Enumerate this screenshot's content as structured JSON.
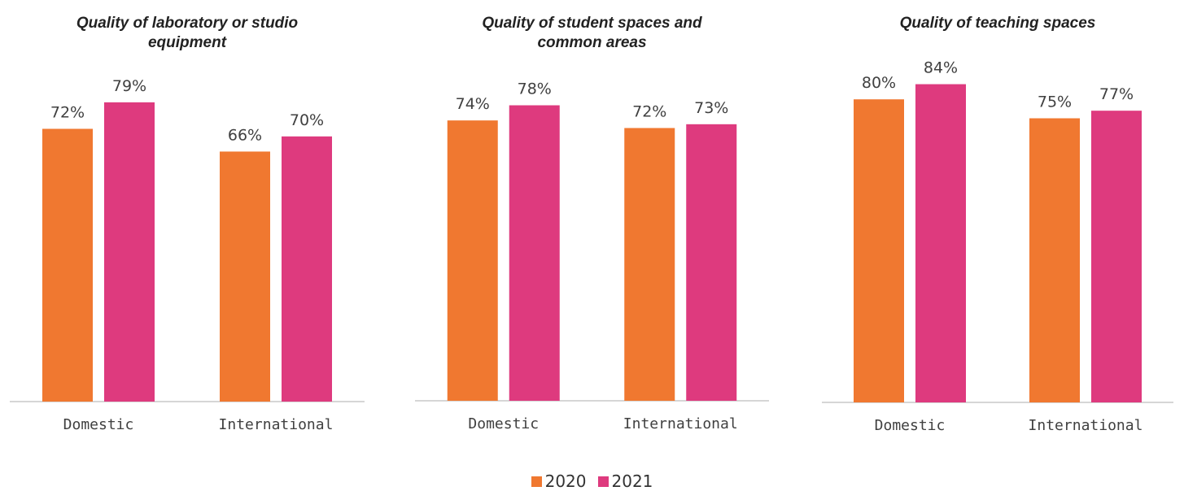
{
  "chart_data": [
    {
      "type": "bar",
      "title": "Quality of laboratory or studio equipment",
      "categories": [
        "Domestic",
        "International"
      ],
      "series": [
        {
          "name": "2020",
          "values": [
            72,
            66
          ]
        },
        {
          "name": "2021",
          "values": [
            79,
            70
          ]
        }
      ],
      "ylim": [
        0,
        100
      ],
      "value_suffix": "%",
      "grid": false
    },
    {
      "type": "bar",
      "title": "Quality of student spaces and common areas",
      "categories": [
        "Domestic",
        "International"
      ],
      "series": [
        {
          "name": "2020",
          "values": [
            74,
            72
          ]
        },
        {
          "name": "2021",
          "values": [
            78,
            73
          ]
        }
      ],
      "ylim": [
        0,
        100
      ],
      "value_suffix": "%",
      "grid": false
    },
    {
      "type": "bar",
      "title": "Quality of teaching spaces",
      "categories": [
        "Domestic",
        "International"
      ],
      "series": [
        {
          "name": "2020",
          "values": [
            80,
            75
          ]
        },
        {
          "name": "2021",
          "values": [
            84,
            77
          ]
        }
      ],
      "ylim": [
        0,
        100
      ],
      "value_suffix": "%",
      "grid": false
    }
  ],
  "legend": {
    "placement": "bottom-center",
    "items": [
      {
        "label": "2020",
        "color": "#F07830"
      },
      {
        "label": "2021",
        "color": "#DE3A7E"
      }
    ]
  },
  "colors": {
    "series_2020": "#F07830",
    "series_2021": "#DE3A7E",
    "axis": "#C8C8C8",
    "label_text": "#404040",
    "title_text": "#222222"
  }
}
